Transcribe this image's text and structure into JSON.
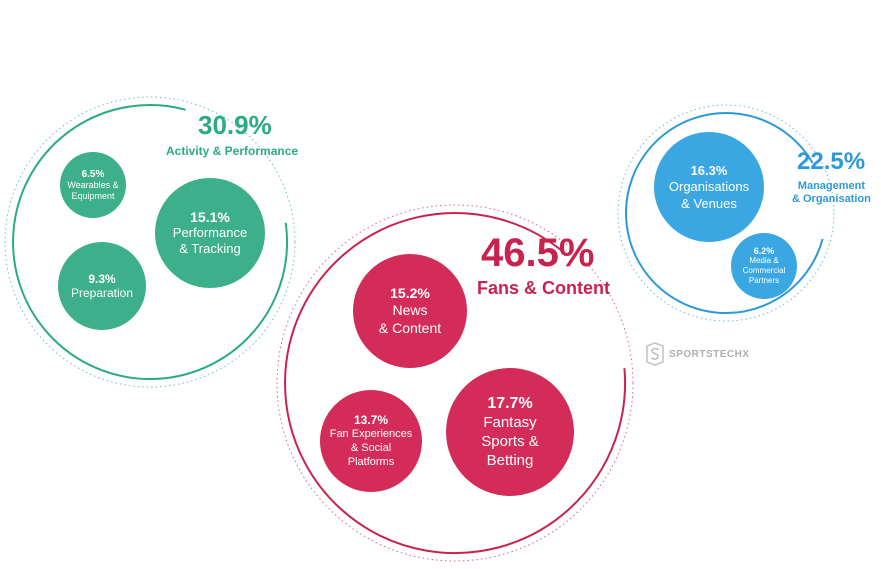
{
  "groups": [
    {
      "id": "activity",
      "pct": "30.9%",
      "label": "Activity & Performance",
      "color": "#2bab85",
      "bubble_color": "#3daf8a",
      "items": [
        {
          "pct": "6.5%",
          "label": "Wearables &\nEquipment"
        },
        {
          "pct": "15.1%",
          "label": "Performance\n& Tracking"
        },
        {
          "pct": "9.3%",
          "label": "Preparation"
        }
      ]
    },
    {
      "id": "fans",
      "pct": "46.5%",
      "label": "Fans & Content",
      "color": "#c8234f",
      "bubble_color": "#d42c58",
      "items": [
        {
          "pct": "15.2%",
          "label": "News\n& Content"
        },
        {
          "pct": "13.7%",
          "label": "Fan Experiences\n& Social\nPlatforms"
        },
        {
          "pct": "17.7%",
          "label": "Fantasy\nSports &\nBetting"
        }
      ]
    },
    {
      "id": "management",
      "pct": "22.5%",
      "label": "Management\n& Organisation",
      "color": "#2d9ad8",
      "bubble_color": "#3aa7e2",
      "items": [
        {
          "pct": "16.3%",
          "label": "Organisations\n& Venues"
        },
        {
          "pct": "6.2%",
          "label": "Media &\nCommercial\nPartners"
        }
      ]
    }
  ],
  "logo": {
    "text": "SPORTSTECHX",
    "color": "#b0b0b0"
  }
}
